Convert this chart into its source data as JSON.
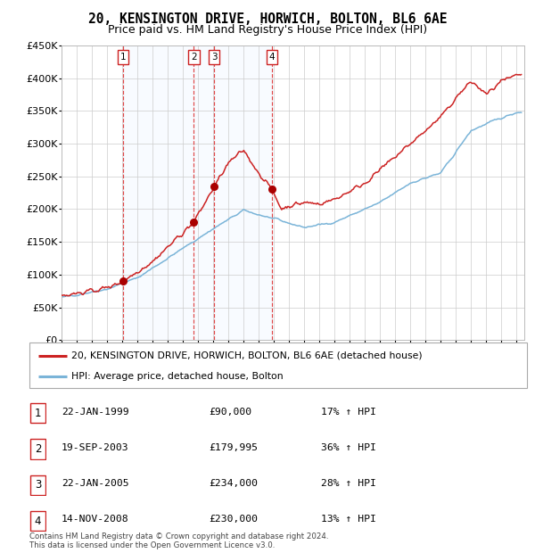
{
  "title": "20, KENSINGTON DRIVE, HORWICH, BOLTON, BL6 6AE",
  "subtitle": "Price paid vs. HM Land Registry's House Price Index (HPI)",
  "ylim": [
    0,
    450000
  ],
  "yticks": [
    0,
    50000,
    100000,
    150000,
    200000,
    250000,
    300000,
    350000,
    400000,
    450000
  ],
  "ytick_labels": [
    "£0",
    "£50K",
    "£100K",
    "£150K",
    "£200K",
    "£250K",
    "£300K",
    "£350K",
    "£400K",
    "£450K"
  ],
  "hpi_color": "#7ab4d8",
  "price_color": "#cc2222",
  "sale_marker_color": "#aa0000",
  "vline_color": "#dd3333",
  "shade_color": "#ddeeff",
  "grid_color": "#cccccc",
  "background_color": "#ffffff",
  "sale_dates": [
    1999.06,
    2003.72,
    2005.06,
    2008.87
  ],
  "sale_labels": [
    "1",
    "2",
    "3",
    "4"
  ],
  "sale_prices": [
    90000,
    179995,
    234000,
    230000
  ],
  "legend_entries": [
    {
      "label": "20, KENSINGTON DRIVE, HORWICH, BOLTON, BL6 6AE (detached house)",
      "color": "#cc2222"
    },
    {
      "label": "HPI: Average price, detached house, Bolton",
      "color": "#7ab4d8"
    }
  ],
  "table_rows": [
    {
      "num": "1",
      "date": "22-JAN-1999",
      "price": "£90,000",
      "hpi": "17% ↑ HPI"
    },
    {
      "num": "2",
      "date": "19-SEP-2003",
      "price": "£179,995",
      "hpi": "36% ↑ HPI"
    },
    {
      "num": "3",
      "date": "22-JAN-2005",
      "price": "£234,000",
      "hpi": "28% ↑ HPI"
    },
    {
      "num": "4",
      "date": "14-NOV-2008",
      "price": "£230,000",
      "hpi": "13% ↑ HPI"
    }
  ],
  "footnote_line1": "Contains HM Land Registry data © Crown copyright and database right 2024.",
  "footnote_line2": "This data is licensed under the Open Government Licence v3.0."
}
